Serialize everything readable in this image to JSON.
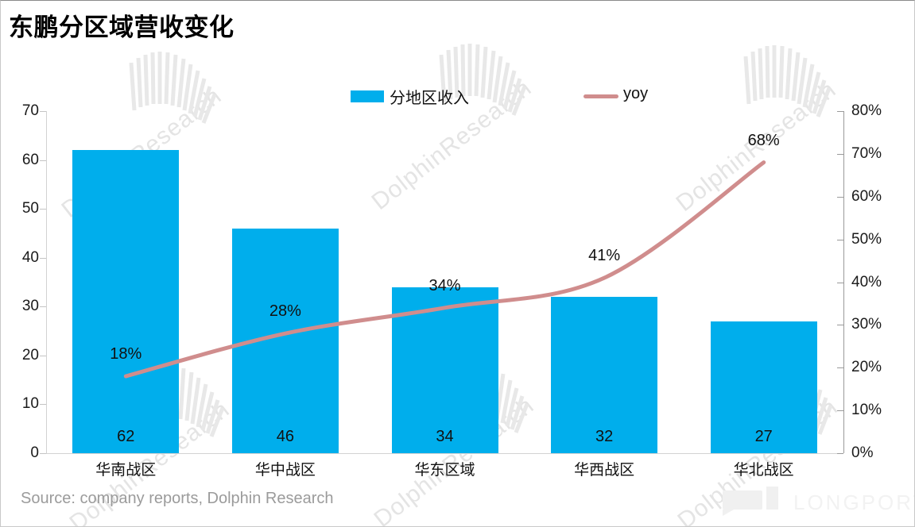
{
  "title": "东鹏分区域营收变化",
  "source": "Source: company reports, Dolphin Research",
  "watermark_text": "DolphinResearch",
  "brand": "LONGPORT",
  "colors": {
    "bar": "#00AEEC",
    "line": "#D08D8D",
    "axis_left": "#d2d2d2",
    "axis_right": "#9a9a9a",
    "source_text": "#9b9b9b",
    "watermark": "#e4e4e4"
  },
  "chart_data": {
    "type": "bar+line",
    "title": "东鹏分区域营收变化",
    "categories": [
      "华南战区",
      "华中战区",
      "华东区域",
      "华西战区",
      "华北战区"
    ],
    "series": [
      {
        "name": "分地区收入",
        "type": "bar",
        "axis": "left",
        "color": "#00AEEC",
        "values": [
          62,
          46,
          34,
          32,
          27
        ],
        "labels": [
          "62",
          "46",
          "34",
          "32",
          "27"
        ]
      },
      {
        "name": "yoy",
        "type": "line",
        "axis": "right",
        "color": "#D08D8D",
        "values": [
          18,
          28,
          34,
          41,
          68
        ],
        "unit": "%",
        "labels": [
          "18%",
          "28%",
          "34%",
          "41%",
          "68%"
        ]
      }
    ],
    "left_axis": {
      "min": 0,
      "max": 70,
      "step": 10,
      "ticks": [
        "0",
        "10",
        "20",
        "30",
        "40",
        "50",
        "60",
        "70"
      ]
    },
    "right_axis": {
      "min": 0,
      "max": 80,
      "step": 10,
      "ticks": [
        "0%",
        "10%",
        "20%",
        "30%",
        "40%",
        "50%",
        "60%",
        "70%",
        "80%"
      ]
    },
    "grid": "off",
    "legend_position": "top-center"
  }
}
